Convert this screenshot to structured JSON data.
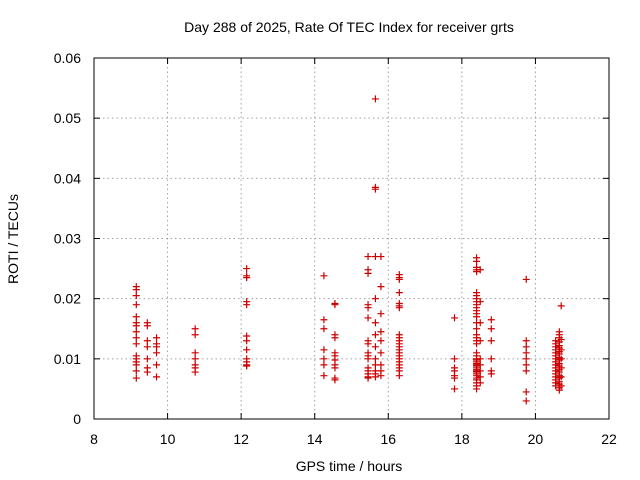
{
  "chart_data": {
    "type": "scatter",
    "title": "Day 288 of 2025, Rate Of TEC Index for receiver grts",
    "xlabel": "GPS time / hours",
    "ylabel": "ROTI / TECUs",
    "xlim": [
      8,
      22
    ],
    "ylim": [
      0,
      0.06
    ],
    "xticks": [
      8,
      10,
      12,
      14,
      16,
      18,
      20,
      22
    ],
    "xtick_labels": [
      "8",
      "10",
      "12",
      "14",
      "16",
      "18",
      "20",
      "22"
    ],
    "yticks": [
      0,
      0.01,
      0.02,
      0.03,
      0.04,
      0.05,
      0.06
    ],
    "ytick_labels": [
      "0",
      "0.01",
      "0.02",
      "0.03",
      "0.04",
      "0.05",
      "0.06"
    ],
    "grid": true,
    "marker": "+",
    "marker_color": "#cc0000",
    "points": [
      [
        9.15,
        0.022
      ],
      [
        9.15,
        0.0215
      ],
      [
        9.15,
        0.0205
      ],
      [
        9.15,
        0.019
      ],
      [
        9.15,
        0.017
      ],
      [
        9.15,
        0.016
      ],
      [
        9.15,
        0.0155
      ],
      [
        9.15,
        0.0145
      ],
      [
        9.15,
        0.0135
      ],
      [
        9.15,
        0.0125
      ],
      [
        9.15,
        0.0105
      ],
      [
        9.15,
        0.01
      ],
      [
        9.15,
        0.0095
      ],
      [
        9.15,
        0.009
      ],
      [
        9.15,
        0.008
      ],
      [
        9.15,
        0.0068
      ],
      [
        9.45,
        0.016
      ],
      [
        9.45,
        0.0155
      ],
      [
        9.45,
        0.013
      ],
      [
        9.45,
        0.012
      ],
      [
        9.45,
        0.01
      ],
      [
        9.45,
        0.0085
      ],
      [
        9.45,
        0.0078
      ],
      [
        9.7,
        0.0135
      ],
      [
        9.7,
        0.0125
      ],
      [
        9.7,
        0.012
      ],
      [
        9.7,
        0.011
      ],
      [
        9.7,
        0.009
      ],
      [
        9.7,
        0.007
      ],
      [
        10.75,
        0.015
      ],
      [
        10.75,
        0.014
      ],
      [
        10.75,
        0.011
      ],
      [
        10.75,
        0.01
      ],
      [
        10.75,
        0.009
      ],
      [
        10.75,
        0.0085
      ],
      [
        10.75,
        0.0078
      ],
      [
        12.15,
        0.025
      ],
      [
        12.15,
        0.0238
      ],
      [
        12.15,
        0.0235
      ],
      [
        12.15,
        0.0195
      ],
      [
        12.15,
        0.019
      ],
      [
        12.15,
        0.0138
      ],
      [
        12.15,
        0.013
      ],
      [
        12.15,
        0.0115
      ],
      [
        12.15,
        0.01
      ],
      [
        12.15,
        0.0095
      ],
      [
        12.15,
        0.009
      ],
      [
        12.15,
        0.0088
      ],
      [
        14.25,
        0.0238
      ],
      [
        14.25,
        0.0165
      ],
      [
        14.25,
        0.015
      ],
      [
        14.25,
        0.0115
      ],
      [
        14.25,
        0.01
      ],
      [
        14.25,
        0.009
      ],
      [
        14.25,
        0.0072
      ],
      [
        14.55,
        0.0192
      ],
      [
        14.55,
        0.019
      ],
      [
        14.55,
        0.014
      ],
      [
        14.55,
        0.0135
      ],
      [
        14.55,
        0.011
      ],
      [
        14.55,
        0.0105
      ],
      [
        14.55,
        0.0098
      ],
      [
        14.55,
        0.009
      ],
      [
        14.55,
        0.0085
      ],
      [
        14.55,
        0.0068
      ],
      [
        14.55,
        0.0065
      ],
      [
        15.45,
        0.027
      ],
      [
        15.45,
        0.0248
      ],
      [
        15.45,
        0.0242
      ],
      [
        15.45,
        0.019
      ],
      [
        15.45,
        0.0185
      ],
      [
        15.45,
        0.0168
      ],
      [
        15.45,
        0.013
      ],
      [
        15.45,
        0.0125
      ],
      [
        15.45,
        0.011
      ],
      [
        15.45,
        0.0105
      ],
      [
        15.45,
        0.01
      ],
      [
        15.45,
        0.0085
      ],
      [
        15.45,
        0.008
      ],
      [
        15.45,
        0.0075
      ],
      [
        15.45,
        0.007
      ],
      [
        15.45,
        0.0068
      ],
      [
        15.65,
        0.0532
      ],
      [
        15.65,
        0.0385
      ],
      [
        15.65,
        0.0382
      ],
      [
        15.65,
        0.027
      ],
      [
        15.65,
        0.02
      ],
      [
        15.65,
        0.016
      ],
      [
        15.65,
        0.014
      ],
      [
        15.65,
        0.012
      ],
      [
        15.65,
        0.01
      ],
      [
        15.65,
        0.009
      ],
      [
        15.65,
        0.008
      ],
      [
        15.65,
        0.0075
      ],
      [
        15.65,
        0.007
      ],
      [
        15.8,
        0.027
      ],
      [
        15.8,
        0.022
      ],
      [
        15.8,
        0.0175
      ],
      [
        15.8,
        0.0145
      ],
      [
        15.8,
        0.013
      ],
      [
        15.8,
        0.011
      ],
      [
        15.8,
        0.009
      ],
      [
        15.8,
        0.008
      ],
      [
        15.8,
        0.0072
      ],
      [
        16.3,
        0.024
      ],
      [
        16.3,
        0.0235
      ],
      [
        16.3,
        0.0232
      ],
      [
        16.3,
        0.021
      ],
      [
        16.3,
        0.0192
      ],
      [
        16.3,
        0.0188
      ],
      [
        16.3,
        0.0185
      ],
      [
        16.3,
        0.014
      ],
      [
        16.3,
        0.0135
      ],
      [
        16.3,
        0.013
      ],
      [
        16.3,
        0.0125
      ],
      [
        16.3,
        0.012
      ],
      [
        16.3,
        0.0115
      ],
      [
        16.3,
        0.011
      ],
      [
        16.3,
        0.0105
      ],
      [
        16.3,
        0.01
      ],
      [
        16.3,
        0.0095
      ],
      [
        16.3,
        0.009
      ],
      [
        16.3,
        0.0085
      ],
      [
        16.3,
        0.008
      ],
      [
        16.3,
        0.0072
      ],
      [
        17.8,
        0.0168
      ],
      [
        17.8,
        0.01
      ],
      [
        17.8,
        0.0085
      ],
      [
        17.8,
        0.008
      ],
      [
        17.8,
        0.0072
      ],
      [
        17.8,
        0.0068
      ],
      [
        17.8,
        0.005
      ],
      [
        18.4,
        0.0268
      ],
      [
        18.4,
        0.0262
      ],
      [
        18.4,
        0.0252
      ],
      [
        18.4,
        0.0248
      ],
      [
        18.4,
        0.0245
      ],
      [
        18.4,
        0.021
      ],
      [
        18.4,
        0.0205
      ],
      [
        18.4,
        0.02
      ],
      [
        18.4,
        0.0195
      ],
      [
        18.4,
        0.019
      ],
      [
        18.4,
        0.0185
      ],
      [
        18.4,
        0.018
      ],
      [
        18.4,
        0.0175
      ],
      [
        18.4,
        0.017
      ],
      [
        18.4,
        0.016
      ],
      [
        18.4,
        0.015
      ],
      [
        18.4,
        0.014
      ],
      [
        18.4,
        0.0135
      ],
      [
        18.4,
        0.013
      ],
      [
        18.4,
        0.0125
      ],
      [
        18.4,
        0.011
      ],
      [
        18.4,
        0.0105
      ],
      [
        18.4,
        0.01
      ],
      [
        18.4,
        0.0098
      ],
      [
        18.4,
        0.0095
      ],
      [
        18.4,
        0.0092
      ],
      [
        18.4,
        0.009
      ],
      [
        18.4,
        0.0088
      ],
      [
        18.4,
        0.0085
      ],
      [
        18.4,
        0.0082
      ],
      [
        18.4,
        0.008
      ],
      [
        18.4,
        0.0078
      ],
      [
        18.4,
        0.0075
      ],
      [
        18.4,
        0.0072
      ],
      [
        18.4,
        0.0068
      ],
      [
        18.4,
        0.0065
      ],
      [
        18.4,
        0.006
      ],
      [
        18.4,
        0.0055
      ],
      [
        18.4,
        0.005
      ],
      [
        18.5,
        0.0248
      ],
      [
        18.5,
        0.0195
      ],
      [
        18.5,
        0.016
      ],
      [
        18.5,
        0.013
      ],
      [
        18.5,
        0.01
      ],
      [
        18.5,
        0.009
      ],
      [
        18.5,
        0.008
      ],
      [
        18.5,
        0.007
      ],
      [
        18.5,
        0.006
      ],
      [
        18.8,
        0.0165
      ],
      [
        18.8,
        0.015
      ],
      [
        18.8,
        0.013
      ],
      [
        18.8,
        0.01
      ],
      [
        18.8,
        0.008
      ],
      [
        18.8,
        0.0075
      ],
      [
        19.75,
        0.0232
      ],
      [
        19.75,
        0.013
      ],
      [
        19.75,
        0.012
      ],
      [
        19.75,
        0.011
      ],
      [
        19.75,
        0.01
      ],
      [
        19.75,
        0.009
      ],
      [
        19.75,
        0.008
      ],
      [
        19.75,
        0.0045
      ],
      [
        19.75,
        0.003
      ],
      [
        20.55,
        0.013
      ],
      [
        20.55,
        0.0125
      ],
      [
        20.55,
        0.012
      ],
      [
        20.55,
        0.0115
      ],
      [
        20.55,
        0.011
      ],
      [
        20.55,
        0.0105
      ],
      [
        20.55,
        0.01
      ],
      [
        20.55,
        0.0095
      ],
      [
        20.55,
        0.009
      ],
      [
        20.55,
        0.0085
      ],
      [
        20.55,
        0.008
      ],
      [
        20.55,
        0.0075
      ],
      [
        20.55,
        0.007
      ],
      [
        20.55,
        0.0065
      ],
      [
        20.55,
        0.006
      ],
      [
        20.55,
        0.0055
      ],
      [
        20.65,
        0.0145
      ],
      [
        20.65,
        0.014
      ],
      [
        20.65,
        0.0135
      ],
      [
        20.65,
        0.0128
      ],
      [
        20.65,
        0.0122
      ],
      [
        20.65,
        0.0118
      ],
      [
        20.65,
        0.0112
      ],
      [
        20.65,
        0.0108
      ],
      [
        20.65,
        0.0102
      ],
      [
        20.65,
        0.0098
      ],
      [
        20.65,
        0.0092
      ],
      [
        20.65,
        0.0088
      ],
      [
        20.65,
        0.0082
      ],
      [
        20.65,
        0.0078
      ],
      [
        20.65,
        0.0072
      ],
      [
        20.65,
        0.0068
      ],
      [
        20.65,
        0.0062
      ],
      [
        20.65,
        0.0058
      ],
      [
        20.65,
        0.0052
      ],
      [
        20.65,
        0.0048
      ],
      [
        20.7,
        0.0188
      ],
      [
        20.7,
        0.0132
      ],
      [
        20.7,
        0.0115
      ],
      [
        20.7,
        0.01
      ],
      [
        20.7,
        0.0085
      ],
      [
        20.7,
        0.007
      ],
      [
        20.7,
        0.0055
      ]
    ]
  }
}
